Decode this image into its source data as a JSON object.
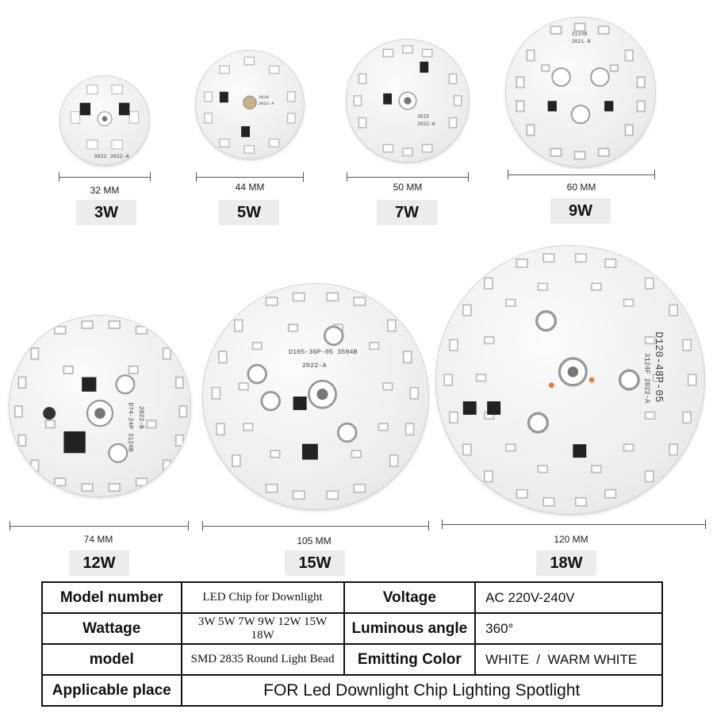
{
  "boards": [
    {
      "size": "32 MM",
      "wattage": "3W",
      "pcb_code": "D30-6P",
      "pcb_date": "3822 2022-A"
    },
    {
      "size": "44 MM",
      "wattage": "5W",
      "pcb_code": "3618",
      "pcb_date": "2022-A"
    },
    {
      "size": "50 MM",
      "wattage": "7W",
      "pcb_code": "3615",
      "pcb_date": "2022-A"
    },
    {
      "size": "60 MM",
      "wattage": "9W",
      "pcb_code": "3124B",
      "pcb_date": "2021-B"
    },
    {
      "size": "74 MM",
      "wattage": "12W",
      "pcb_code": "D74-24P 3124B",
      "pcb_date": "2022-B"
    },
    {
      "size": "105 MM",
      "wattage": "15W",
      "pcb_code": "D105-36P-05 3594B",
      "pcb_date": "2022-A"
    },
    {
      "size": "120 MM",
      "wattage": "18W",
      "pcb_code": "D120-48P-05",
      "pcb_date": "3124F 2022-A"
    }
  ],
  "spec_table": {
    "rows": [
      {
        "label1": "Model number",
        "value1": "LED Chip for Downlight",
        "label2": "Voltage",
        "value2": "AC 220V-240V"
      },
      {
        "label1": "Wattage",
        "value1": "3W 5W 7W 9W 12W 15W 18W",
        "label2": "Luminous angle",
        "value2": "360°"
      },
      {
        "label1": "model",
        "value1": "SMD 2835 Round Light Bead",
        "label2": "Emitting Color",
        "value2": "WHITE  /  WARM WHITE"
      }
    ],
    "last_row": {
      "label": "Applicable place",
      "value": "FOR Led Downlight Chip Lighting Spotlight"
    }
  }
}
